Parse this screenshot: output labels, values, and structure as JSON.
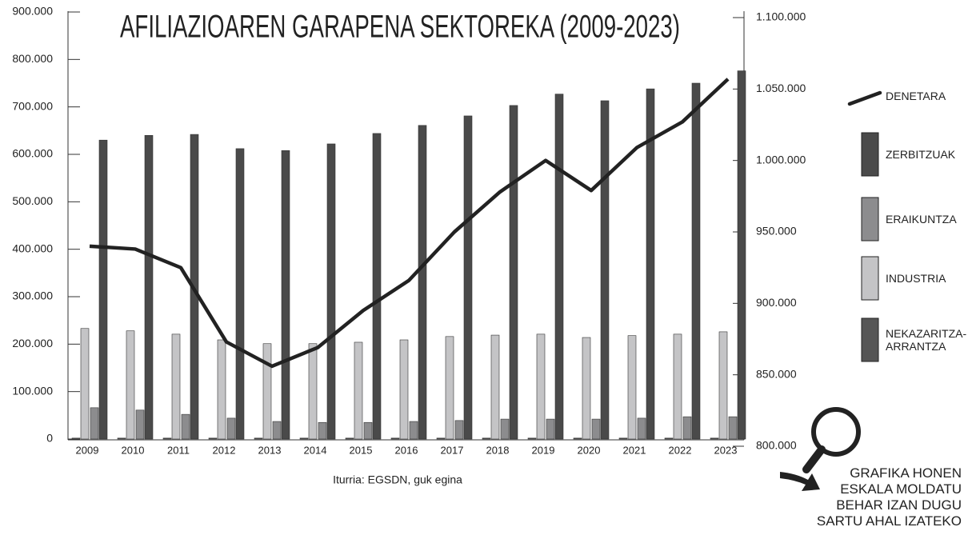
{
  "chart_data": {
    "type": "bar",
    "title": "AFILIAZIOAREN GARAPENA SEKTOREKA (2009-2023)",
    "source": "Iturria: EGSDN, guk egina",
    "annotation": [
      "GRAFIKA HONEN",
      "ESKALA MOLDATU",
      "BEHAR IZAN DUGU",
      "SARTU AHAL IZATEKO"
    ],
    "categories": [
      "2009",
      "2010",
      "2011",
      "2012",
      "2013",
      "2014",
      "2015",
      "2016",
      "2017",
      "2018",
      "2019",
      "2020",
      "2021",
      "2022",
      "2023"
    ],
    "series": [
      {
        "name": "NEKAZARITZA-ARRANTZA",
        "type": "bar",
        "color": "#555555",
        "values": [
          2000,
          2000,
          2000,
          2000,
          2000,
          2000,
          2000,
          2000,
          2000,
          2000,
          2000,
          2000,
          2000,
          2000,
          2000
        ]
      },
      {
        "name": "INDUSTRIA",
        "type": "bar",
        "color": "#c4c4c6",
        "values": [
          233000,
          228000,
          221000,
          209000,
          201000,
          201000,
          204000,
          209000,
          216000,
          219000,
          221000,
          214000,
          218000,
          221000,
          226000
        ]
      },
      {
        "name": "ERAIKUNTZA",
        "type": "bar",
        "color": "#8c8c8e",
        "values": [
          66000,
          61000,
          52000,
          44000,
          37000,
          35000,
          35000,
          37000,
          39000,
          42000,
          42000,
          42000,
          44000,
          47000,
          47000
        ]
      },
      {
        "name": "ZERBITZUAK",
        "type": "bar",
        "color": "#4a4a4a",
        "values": [
          630000,
          640000,
          642000,
          612000,
          608000,
          622000,
          644000,
          661000,
          681000,
          703000,
          727000,
          713000,
          738000,
          750000,
          776000
        ]
      },
      {
        "name": "DENETARA",
        "type": "line",
        "axis": "y2",
        "color": "#222222",
        "values": [
          940000,
          938000,
          925000,
          873000,
          856000,
          869000,
          895000,
          916000,
          950000,
          978000,
          1000000,
          979000,
          1009000,
          1027000,
          1057000
        ]
      }
    ],
    "ylim": [
      0,
      900000
    ],
    "yticks": [
      0,
      {
        "value": 100000,
        "label": "100.000"
      },
      {
        "value": 200000,
        "label": "200.000"
      },
      {
        "value": 300000,
        "label": "300.000"
      },
      {
        "value": 400000,
        "label": "400.000"
      },
      {
        "value": 500000,
        "label": "500.000"
      },
      {
        "value": 600000,
        "label": "600.000"
      },
      {
        "value": 700000,
        "label": "700.000"
      },
      {
        "value": 800000,
        "label": "800.000"
      },
      {
        "value": 900000,
        "label": "900.000"
      }
    ],
    "y2lim": [
      800000,
      1100000
    ],
    "y2ticks": [
      {
        "value": 800000,
        "label": "800.000"
      },
      {
        "value": 850000,
        "label": "850.000"
      },
      {
        "value": 900000,
        "label": "900.000"
      },
      {
        "value": 950000,
        "label": "950.000"
      },
      {
        "value": 1000000,
        "label": "1.000.000"
      },
      {
        "value": 1050000,
        "label": "1.050.000"
      },
      {
        "value": 1100000,
        "label": "1.100.000"
      }
    ]
  }
}
